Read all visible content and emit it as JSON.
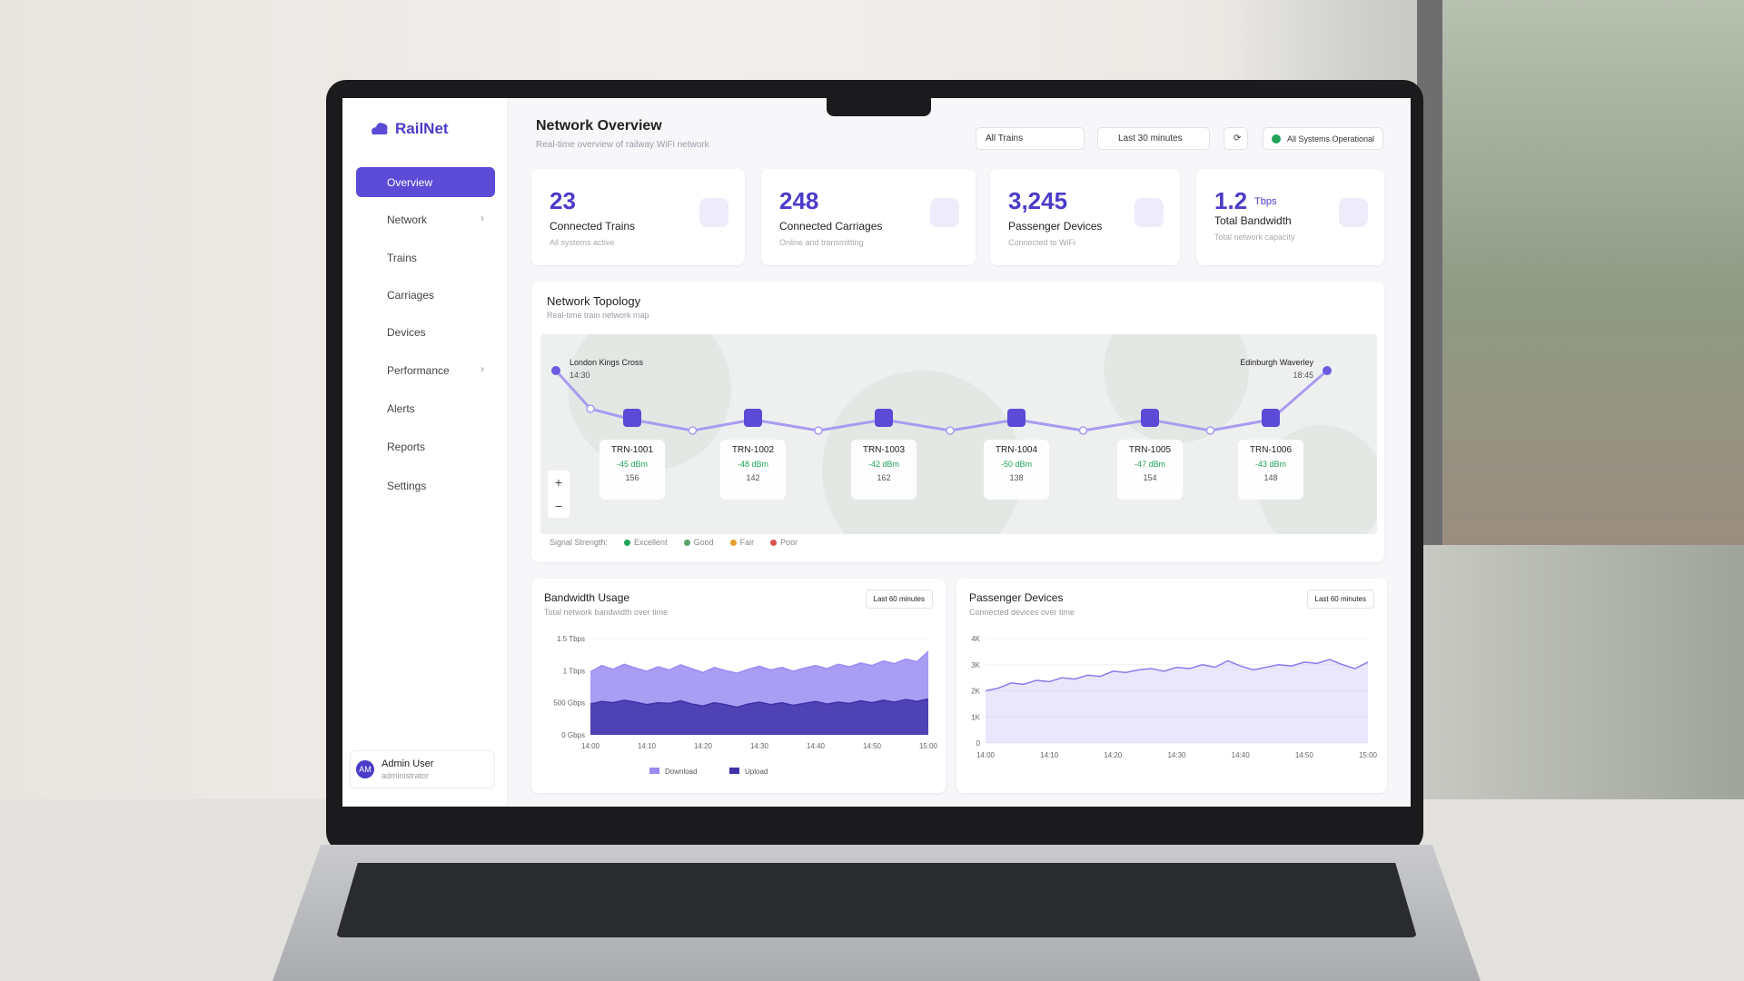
{
  "brand": "RailNet",
  "nav": [
    "Overview",
    "Network",
    "Trains",
    "Carriages",
    "Devices",
    "Performance",
    "Alerts",
    "Reports",
    "Settings"
  ],
  "user": {
    "initials": "AM",
    "name": "Admin User",
    "role": "administrator"
  },
  "header": {
    "title": "Network Overview",
    "subtitle": "Real-time overview of railway WiFi network",
    "train_filter": "All Trains",
    "time_filter": "Last 30 minutes",
    "status": "All Systems Operational"
  },
  "stats": [
    {
      "value": "23",
      "label": "Connected Trains",
      "note": "All systems active"
    },
    {
      "value": "248",
      "label": "Connected Carriages",
      "note": "Online and transmitting"
    },
    {
      "value": "3,245",
      "label": "Passenger Devices",
      "note": "Connected to WiFi"
    },
    {
      "value": "1.2",
      "unit": "Tbps",
      "label": "Total Bandwidth",
      "note": "Total network capacity"
    }
  ],
  "topology": {
    "title": "Network Topology",
    "subtitle": "Real-time train network map",
    "start": {
      "name": "London Kings Cross",
      "time": "14:30"
    },
    "end": {
      "name": "Edinburgh Waverley",
      "time": "18:45"
    },
    "trains": [
      {
        "id": "TRN-1001",
        "signal": "-45 dBm",
        "passengers": "156"
      },
      {
        "id": "TRN-1002",
        "signal": "-48 dBm",
        "passengers": "142"
      },
      {
        "id": "TRN-1003",
        "signal": "-42 dBm",
        "passengers": "162"
      },
      {
        "id": "TRN-1004",
        "signal": "-50 dBm",
        "passengers": "138"
      },
      {
        "id": "TRN-1005",
        "signal": "-47 dBm",
        "passengers": "154"
      },
      {
        "id": "TRN-1006",
        "signal": "-43 dBm",
        "passengers": "148"
      }
    ],
    "zoom": [
      "+",
      "−"
    ],
    "legend_title": "Signal Strength:",
    "legend": [
      {
        "name": "Excellent",
        "color": "#22a35a"
      },
      {
        "name": "Good",
        "color": "#5aa36a"
      },
      {
        "name": "Fair",
        "color": "#e0a030"
      },
      {
        "name": "Poor",
        "color": "#d9534f"
      }
    ]
  },
  "chart_data": [
    {
      "type": "area",
      "title": "Bandwidth Usage",
      "subtitle": "Total network bandwidth over time",
      "range_filter": "Last 60 minutes",
      "categories": [
        "14:00",
        null,
        null,
        null,
        null,
        "14:10",
        null,
        null,
        null,
        null,
        "14:20",
        null,
        null,
        null,
        null,
        "14:30",
        null,
        null,
        null,
        null,
        "14:40",
        null,
        null,
        null,
        null,
        "14:50",
        null,
        null,
        null,
        null,
        "15:00"
      ],
      "series": [
        {
          "name": "Download",
          "color": "#9a8cf2",
          "values": [
            980,
            1080,
            1020,
            1100,
            1040,
            990,
            1060,
            1010,
            1090,
            1030,
            970,
            1050,
            1000,
            960,
            1020,
            1070,
            1010,
            1050,
            990,
            1040,
            1080,
            1030,
            1100,
            1060,
            1120,
            1080,
            1150,
            1110,
            1180,
            1140,
            1300
          ]
        },
        {
          "name": "Upload",
          "color": "#3f32a8",
          "values": [
            480,
            520,
            500,
            540,
            510,
            470,
            500,
            490,
            530,
            480,
            450,
            500,
            470,
            430,
            480,
            510,
            470,
            500,
            460,
            490,
            520,
            480,
            510,
            490,
            530,
            500,
            540,
            510,
            550,
            520,
            560
          ]
        }
      ],
      "ylim": [
        0,
        1500
      ],
      "yticks": [
        {
          "value": 0,
          "label": "0 Gbps"
        },
        {
          "value": 500,
          "label": "500 Gbps"
        },
        {
          "value": 1000,
          "label": "1 Tbps"
        },
        {
          "value": 1500,
          "label": "1.5 Tbps"
        }
      ],
      "legend": "bottom"
    },
    {
      "type": "area",
      "title": "Passenger Devices",
      "subtitle": "Connected devices over time",
      "range_filter": "Last 60 minutes",
      "categories": [
        "14:00",
        null,
        null,
        null,
        null,
        "14:10",
        null,
        null,
        null,
        null,
        "14:20",
        null,
        null,
        null,
        null,
        "14:30",
        null,
        null,
        null,
        null,
        "14:40",
        null,
        null,
        null,
        null,
        "14:50",
        null,
        null,
        null,
        null,
        "15:00"
      ],
      "color": "#8b7cf0",
      "values": [
        2000,
        2100,
        2300,
        2250,
        2400,
        2350,
        2500,
        2450,
        2600,
        2550,
        2750,
        2700,
        2800,
        2850,
        2750,
        2900,
        2850,
        3000,
        2900,
        3150,
        2950,
        2800,
        2900,
        3000,
        2950,
        3100,
        3050,
        3200,
        3000,
        2850,
        3100
      ],
      "ylim": [
        0,
        4000
      ],
      "yticks": [
        0,
        {
          "value": 1000,
          "label": "1K"
        },
        {
          "value": 2000,
          "label": "2K"
        },
        {
          "value": 3000,
          "label": "3K"
        },
        {
          "value": 4000,
          "label": "4K"
        }
      ]
    }
  ]
}
